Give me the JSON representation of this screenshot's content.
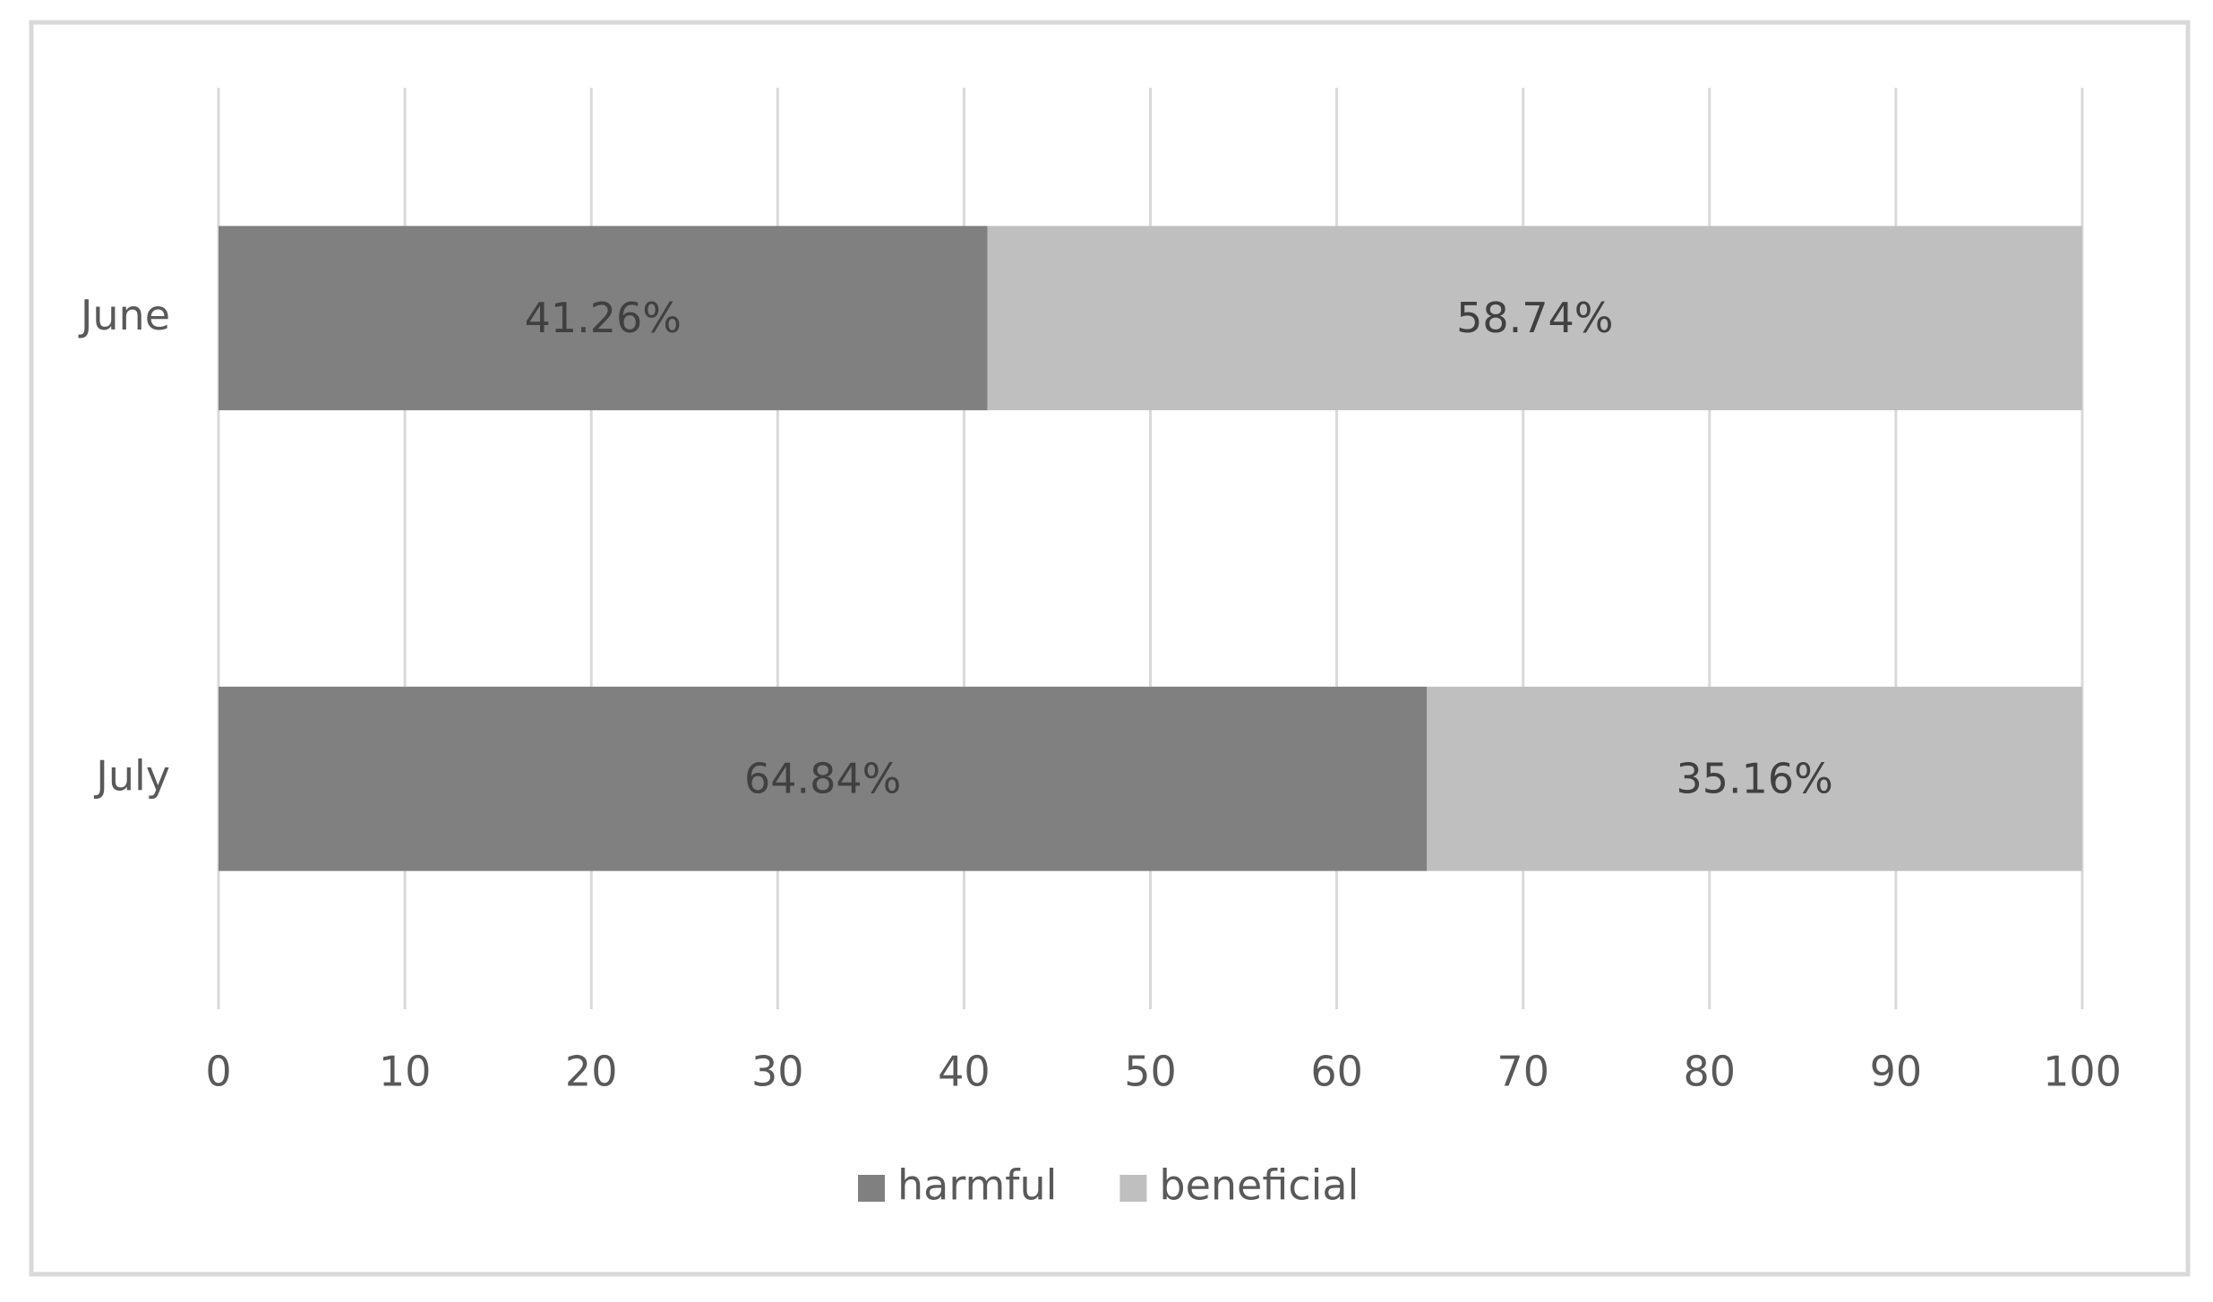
{
  "chart_data": {
    "type": "stacked-horizontal-bar",
    "categories": [
      "June",
      "July"
    ],
    "series": [
      {
        "name": "harmful",
        "color": "#808080",
        "values": [
          41.26,
          64.84
        ],
        "value_labels": [
          "41.26%",
          "64.84%"
        ]
      },
      {
        "name": "beneficial",
        "color": "#bfbfbf",
        "values": [
          58.74,
          35.16
        ],
        "value_labels": [
          "58.74%",
          "35.16%"
        ]
      }
    ],
    "xlim": [
      0,
      100
    ],
    "xticks": [
      0,
      10,
      20,
      30,
      40,
      50,
      60,
      70,
      80,
      90,
      100
    ],
    "grid": true,
    "legend": "bottom"
  }
}
